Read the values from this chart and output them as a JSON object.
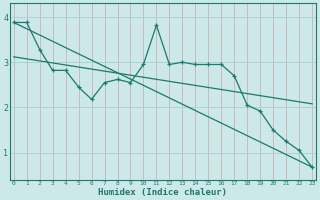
{
  "xlabel": "Humidex (Indice chaleur)",
  "bg_color": "#cce8e8",
  "line_color": "#1a7a6e",
  "grid_color_h": "#aad4d4",
  "grid_color_v": "#c8a8a8",
  "x_ticks": [
    0,
    1,
    2,
    3,
    4,
    5,
    6,
    7,
    8,
    9,
    10,
    11,
    12,
    13,
    14,
    15,
    16,
    17,
    18,
    19,
    20,
    21,
    22,
    23
  ],
  "y_ticks": [
    1,
    2,
    3,
    4
  ],
  "ylim": [
    0.4,
    4.3
  ],
  "xlim": [
    -0.3,
    23.3
  ],
  "series1": {
    "x": [
      0,
      1,
      2,
      3,
      4,
      5,
      6,
      7,
      8,
      9,
      10,
      11,
      12,
      13,
      14,
      15,
      16,
      17,
      18,
      19,
      20,
      21,
      22,
      23
    ],
    "y": [
      3.88,
      3.88,
      3.28,
      2.82,
      2.82,
      2.45,
      2.18,
      2.55,
      2.62,
      2.55,
      2.95,
      3.82,
      2.95,
      3.0,
      2.95,
      2.95,
      2.95,
      2.7,
      2.05,
      1.92,
      1.5,
      1.25,
      1.05,
      0.68
    ]
  },
  "series2": {
    "x": [
      0,
      23
    ],
    "y": [
      3.88,
      0.68
    ]
  },
  "series3": {
    "x": [
      0,
      23
    ],
    "y": [
      3.12,
      2.08
    ]
  }
}
